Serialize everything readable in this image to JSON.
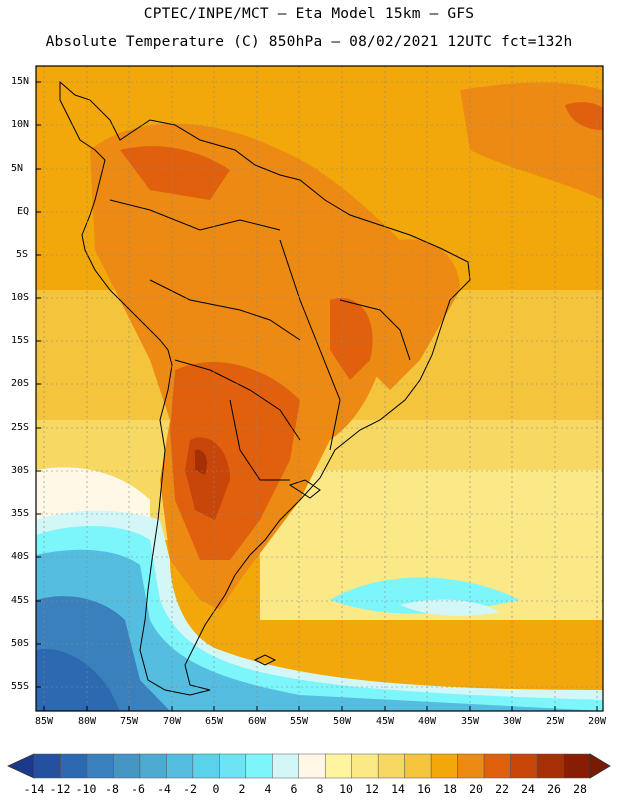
{
  "header": {
    "line1": "CPTEC/INPE/MCT –  Eta Model 15km – GFS",
    "line2": "Absolute Temperature (C) 850hPa – 08/02/2021 12UTC fct=132h"
  },
  "map": {
    "lon_range": [
      -86,
      -19.5
    ],
    "lat_range": [
      -58,
      17.5
    ],
    "lat_labels": [
      "15N",
      "10N",
      "5N",
      "EQ",
      "5S",
      "10S",
      "15S",
      "20S",
      "25S",
      "30S",
      "35S",
      "40S",
      "45S",
      "50S",
      "55S"
    ],
    "lon_labels": [
      "85W",
      "80W",
      "75W",
      "70W",
      "65W",
      "60W",
      "55W",
      "50W",
      "45W",
      "40W",
      "35W",
      "30W",
      "25W",
      "20W"
    ]
  },
  "colorbar": {
    "levels": [
      "-14",
      "-12",
      "-10",
      "-8",
      "-6",
      "-4",
      "-2",
      "0",
      "2",
      "4",
      "6",
      "8",
      "10",
      "12",
      "14",
      "16",
      "18",
      "20",
      "22",
      "24",
      "26",
      "28"
    ],
    "colors": [
      "#1c3a8a",
      "#23519f",
      "#2d69b0",
      "#3a80bd",
      "#4596c5",
      "#4eaad1",
      "#55bde0",
      "#5ad2ea",
      "#6ce4f4",
      "#7df6fb",
      "#d3f7f7",
      "#fff8e6",
      "#fff5a0",
      "#fbe886",
      "#f7d862",
      "#f4c43c",
      "#f2a70a",
      "#ec8a14",
      "#e1600d",
      "#c84609",
      "#a62f06",
      "#861d04",
      "#771b03"
    ]
  }
}
